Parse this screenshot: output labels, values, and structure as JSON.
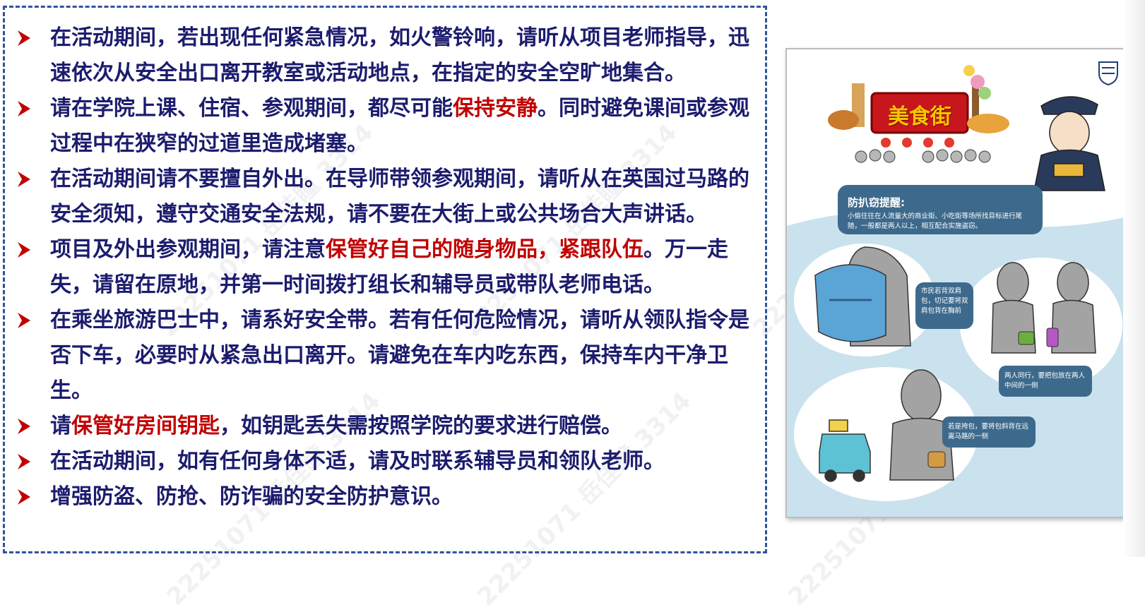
{
  "watermark_text": "22251071 岳佳瞳 3314",
  "rules": [
    [
      {
        "t": "在活动期间，若出现任何紧急情况，如火警铃响，请听从项目老师指导，迅速依次从安全出口离开教室或活动地点，在指定的安全空旷地集合。",
        "h": false
      }
    ],
    [
      {
        "t": "请在学院上课、住宿、参观期间，都尽可能",
        "h": false
      },
      {
        "t": "保持安静",
        "h": true
      },
      {
        "t": "。同时避免课间或参观过程中在狭窄的过道里造成堵塞。",
        "h": false
      }
    ],
    [
      {
        "t": "在活动期间请不要擅自外出。在导师带领参观期间，请听从在英国过马路的安全须知，遵守交通安全法规，请不要在大街上或公共场合大声讲话。",
        "h": false
      }
    ],
    [
      {
        "t": "项目及外出参观期间，请注意",
        "h": false
      },
      {
        "t": "保管好自己的随身物品，紧跟队伍",
        "h": true
      },
      {
        "t": "。万一走失，请留在原地，并第一时间拨打组长和辅导员或带队老师电话。",
        "h": false
      }
    ],
    [
      {
        "t": "在乘坐旅游巴士中，请系好安全带。若有任何危险情况，请听从领队指令是否下车，必要时从紧急出口离开。请避免在车内吃东西，保持车内干净卫生。",
        "h": false
      }
    ],
    [
      {
        "t": "请",
        "h": false
      },
      {
        "t": "保管好房间钥匙",
        "h": true
      },
      {
        "t": "，如钥匙丢失需按照学院的要求进行赔偿。",
        "h": false
      }
    ],
    [
      {
        "t": "在活动期间，如有任何身体不适，请及时联系辅导员和领队老师。",
        "h": false
      }
    ],
    [
      {
        "t": "增强防盗、防抢、防诈骗的安全防护意识。",
        "h": false
      }
    ]
  ],
  "poster": {
    "sign_title": "美食街",
    "tip_title": "防扒窃提醒:",
    "tip_text": "小偷往往在人流量大的商业街、小吃街等场所找目标进行尾随，一般都是两人以上，相互配合实施盗窃。",
    "bubble_backpack": "市民若背双肩包，切记要将双肩包背在胸前",
    "bubble_pair": "两人同行，要把包放在两人中间的一侧",
    "bubble_road": "若是挎包，要将包斜背在远离马路的一侧"
  },
  "colors": {
    "body_text": "#1c1c6e",
    "highlight": "#c00000",
    "border": "#2f5597",
    "bullet": "#c00000",
    "poster_bubble": "#3d6a8c",
    "poster_bg": "#c9e2ee"
  },
  "icons": [
    "arrow-bullet-icon",
    "police-logo-icon"
  ]
}
